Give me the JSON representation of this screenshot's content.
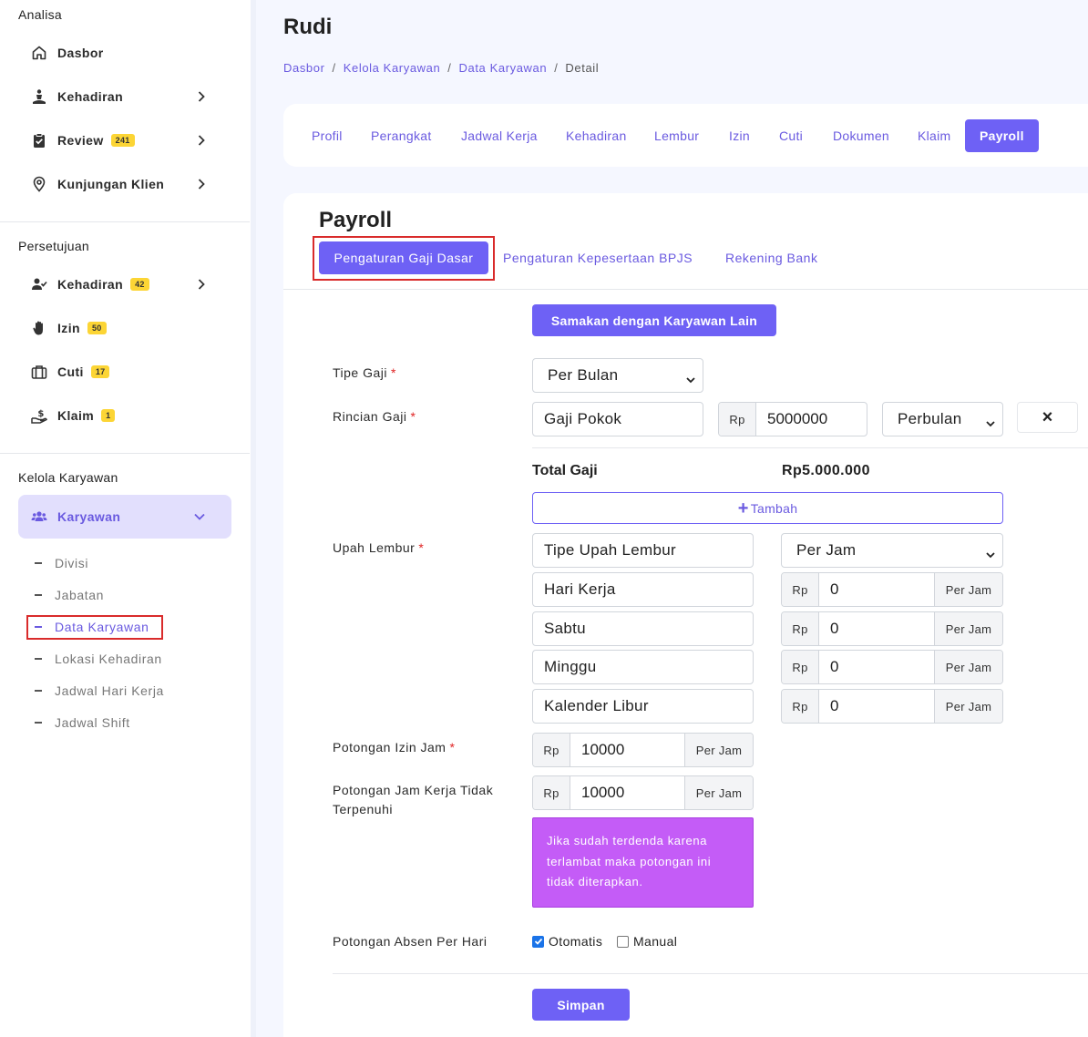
{
  "sidebar": {
    "analisa_title": "Analisa",
    "analisa": [
      {
        "label": "Dasbor"
      },
      {
        "label": "Kehadiran"
      },
      {
        "label": "Review",
        "badge": "241"
      },
      {
        "label": "Kunjungan Klien"
      }
    ],
    "persetujuan_title": "Persetujuan",
    "persetujuan": [
      {
        "label": "Kehadiran",
        "badge": "42"
      },
      {
        "label": "Izin",
        "badge": "50"
      },
      {
        "label": "Cuti",
        "badge": "17"
      },
      {
        "label": "Klaim",
        "badge": "1"
      }
    ],
    "kelola_title": "Kelola Karyawan",
    "karyawan_label": "Karyawan",
    "sub_items": [
      "Divisi",
      "Jabatan",
      "Data Karyawan",
      "Lokasi Kehadiran",
      "Jadwal Hari Kerja",
      "Jadwal Shift"
    ]
  },
  "header": {
    "title": "Rudi",
    "breadcrumb": [
      "Dasbor",
      "Kelola Karyawan",
      "Data Karyawan",
      "Detail"
    ]
  },
  "tabs": [
    "Profil",
    "Perangkat",
    "Jadwal Kerja",
    "Kehadiran",
    "Lembur",
    "Izin",
    "Cuti",
    "Dokumen",
    "Klaim",
    "Payroll"
  ],
  "payroll": {
    "title": "Payroll",
    "subtabs": [
      "Pengaturan Gaji Dasar",
      "Pengaturan Kepesertaan BPJS",
      "Rekening Bank"
    ],
    "samakan_label": "Samakan dengan Karyawan Lain",
    "tipe_gaji_label": "Tipe Gaji",
    "tipe_gaji_value": "Per Bulan",
    "rincian_label": "Rincian Gaji",
    "rincian_name": "Gaji Pokok",
    "currency": "Rp",
    "rincian_amount": "5000000",
    "rincian_period": "Perbulan",
    "remove_icon": "×",
    "total_label": "Total Gaji",
    "total_value": "Rp5.000.000",
    "tambah_label": "Tambah",
    "upah_label": "Upah Lembur",
    "upah_tipe_placeholder": "Tipe Upah Lembur",
    "upah_tipe_value": "Per Jam",
    "per_jam": "Per Jam",
    "upah_rows": [
      {
        "name": "Hari Kerja",
        "value": "0"
      },
      {
        "name": "Sabtu",
        "value": "0"
      },
      {
        "name": "Minggu",
        "value": "0"
      },
      {
        "name": "Kalender Libur",
        "value": "0"
      }
    ],
    "potongan_izin_label": "Potongan Izin Jam",
    "potongan_izin_value": "10000",
    "potongan_jam_label_1": "Potongan Jam Kerja Tidak",
    "potongan_jam_label_2": "Terpenuhi",
    "potongan_jam_value": "10000",
    "note": "Jika sudah terdenda karena terlambat maka potongan ini tidak diterapkan.",
    "absen_label": "Potongan Absen Per Hari",
    "otomatis_label": "Otomatis",
    "manual_label": "Manual",
    "simpan_label": "Simpan"
  }
}
